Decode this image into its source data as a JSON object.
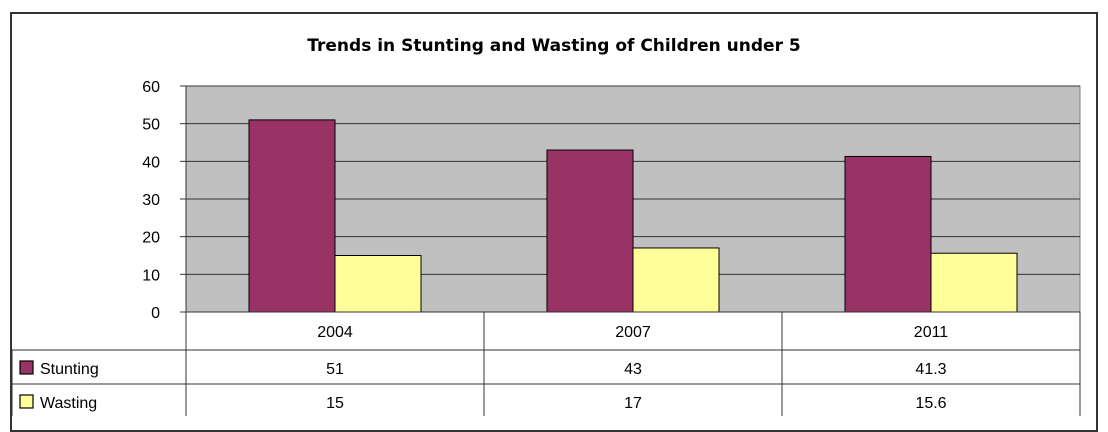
{
  "chart_data": {
    "type": "bar",
    "title": "Trends in Stunting and Wasting of Children under 5",
    "categories": [
      "2004",
      "2007",
      "2011"
    ],
    "series": [
      {
        "name": "Stunting",
        "values": [
          51,
          43,
          41.3
        ],
        "color": "#993366"
      },
      {
        "name": "Wasting",
        "values": [
          15,
          17,
          15.6
        ],
        "color": "#FFFF99"
      }
    ],
    "table": {
      "rows": [
        {
          "name": "Stunting",
          "cells": [
            "51",
            "43",
            "41.3"
          ]
        },
        {
          "name": "Wasting",
          "cells": [
            "15",
            "17",
            "15.6"
          ]
        }
      ]
    },
    "ylim": [
      0,
      60
    ],
    "yticks": [
      0,
      10,
      20,
      30,
      40,
      50,
      60
    ],
    "grid": true,
    "legend": "data-table",
    "plot_background": "#C0C0C0"
  }
}
